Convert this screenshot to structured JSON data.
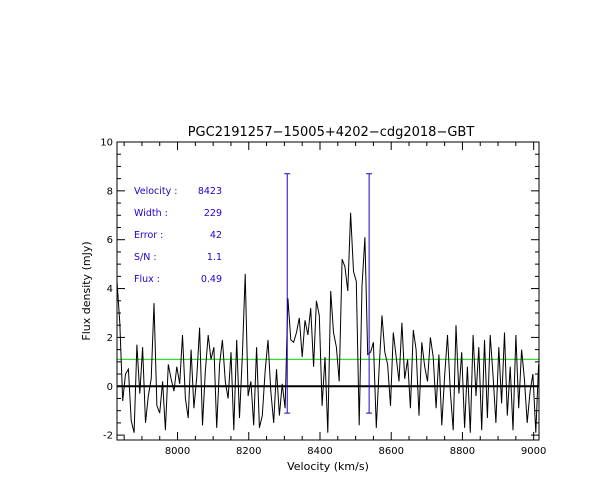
{
  "chart_data": {
    "type": "line",
    "title": "PGC2191257−15005+4202−cdg2018−GBT",
    "xlabel": "Velocity (km/s)",
    "ylabel": "Flux density (mJy)",
    "xlim": [
      7830,
      9015
    ],
    "ylim": [
      -2.2,
      10
    ],
    "x_ticks": [
      8000,
      8200,
      8400,
      8600,
      8800,
      9000
    ],
    "y_ticks": [
      -2,
      0,
      2,
      4,
      6,
      8,
      10
    ],
    "annotations": [
      {
        "label": "Velocity :",
        "value": "8423"
      },
      {
        "label": "Width :",
        "value": "229"
      },
      {
        "label": "Error :",
        "value": "42"
      },
      {
        "label": "S/N :",
        "value": "1.1"
      },
      {
        "label": "Flux :",
        "value": "0.49"
      }
    ],
    "zero_line": 0,
    "rms_line": 1.1,
    "width_markers": [
      {
        "x": 8308,
        "y_top": 8.7,
        "y_bottom": -1.1
      },
      {
        "x": 8538,
        "y_top": 8.7,
        "y_bottom": -1.1
      }
    ],
    "colors": {
      "spectrum": "#000000",
      "zero_line": "#000000",
      "rms_line": "#33dd33",
      "markers": "#2200cc",
      "annotations": "#2200cc"
    },
    "series": [
      {
        "x": [
          7830,
          7838,
          7846,
          7854,
          7862,
          7870,
          7878,
          7886,
          7894,
          7902,
          7910,
          7918,
          7926,
          7934,
          7942,
          7950,
          7958,
          7966,
          7974,
          7982,
          7990,
          7998,
          8006,
          8014,
          8022,
          8030,
          8038,
          8046,
          8054,
          8062,
          8070,
          8078,
          8086,
          8094,
          8102,
          8110,
          8118,
          8126,
          8134,
          8142,
          8150,
          8158,
          8166,
          8174,
          8182,
          8190,
          8198,
          8206,
          8214,
          8222,
          8230,
          8238,
          8246,
          8254,
          8262,
          8270,
          8278,
          8286,
          8294,
          8302,
          8310,
          8318,
          8326,
          8334,
          8342,
          8350,
          8358,
          8366,
          8374,
          8382,
          8390,
          8398,
          8406,
          8414,
          8422,
          8430,
          8438,
          8446,
          8454,
          8462,
          8470,
          8478,
          8486,
          8494,
          8502,
          8510,
          8518,
          8526,
          8534,
          8542,
          8550,
          8558,
          8566,
          8574,
          8582,
          8590,
          8598,
          8606,
          8614,
          8622,
          8630,
          8638,
          8646,
          8654,
          8662,
          8670,
          8678,
          8686,
          8694,
          8702,
          8710,
          8718,
          8726,
          8734,
          8742,
          8750,
          8758,
          8766,
          8774,
          8782,
          8790,
          8798,
          8806,
          8814,
          8822,
          8830,
          8838,
          8846,
          8854,
          8862,
          8870,
          8878,
          8886,
          8894,
          8902,
          8910,
          8918,
          8926,
          8934,
          8942,
          8950,
          8958,
          8966,
          8974,
          8982,
          8990,
          8998,
          9006,
          9014
        ],
        "values": [
          4.3,
          2.6,
          -0.6,
          0.5,
          0.7,
          -1.4,
          -1.9,
          1.7,
          -0.3,
          1.6,
          -1.5,
          -0.4,
          0.3,
          3.4,
          -0.8,
          -1.1,
          0.2,
          -1.8,
          0.9,
          0.3,
          -0.2,
          0.8,
          0.1,
          2.1,
          -0.5,
          -1.3,
          1.5,
          -0.9,
          0.4,
          2.4,
          -1.6,
          0.6,
          2.1,
          1.1,
          1.6,
          -1.7,
          0.9,
          1.9,
          0.2,
          -0.5,
          1.4,
          -1.8,
          1.9,
          -1.3,
          1.3,
          4.6,
          -0.4,
          0.2,
          -1.6,
          1.6,
          -1.7,
          -1.2,
          0.6,
          1.9,
          -0.2,
          -1.5,
          0.7,
          -1.2,
          0.1,
          -0.9,
          3.6,
          1.9,
          1.8,
          2.2,
          2.8,
          1.2,
          2.7,
          2.1,
          3.2,
          0.8,
          3.5,
          2.9,
          -0.8,
          1.2,
          -1.9,
          3.9,
          2.2,
          1.6,
          0.2,
          5.2,
          4.9,
          3.9,
          7.1,
          4.7,
          4.3,
          -1.6,
          4.1,
          6.1,
          1.3,
          1.4,
          1.8,
          -1.7,
          0.7,
          2.9,
          1.4,
          0.9,
          -0.8,
          2.2,
          1.2,
          0.2,
          2.6,
          0.3,
          1.1,
          -0.9,
          2.3,
          1.5,
          -1.2,
          1.8,
          0.8,
          0.2,
          2.0,
          1.2,
          -0.9,
          1.3,
          -1.6,
          0.4,
          2.1,
          -0.2,
          -1.8,
          2.5,
          -0.3,
          1.4,
          -1.7,
          0.8,
          -1.9,
          2.1,
          -0.4,
          1.6,
          -1.8,
          1.9,
          -1.3,
          2.1,
          0.4,
          -1.5,
          1.6,
          -0.7,
          2.2,
          -1.2,
          0.8,
          -1.8,
          2.1,
          -0.9,
          1.5,
          0.3,
          -1.5,
          -0.2,
          0.5,
          -1.9,
          0.9
        ]
      }
    ]
  }
}
